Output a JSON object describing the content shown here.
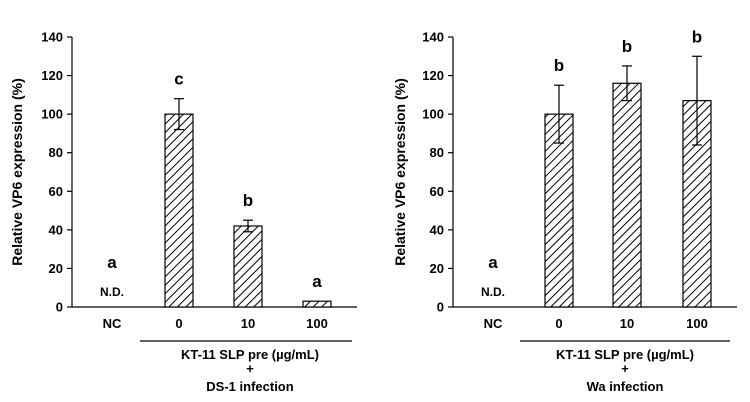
{
  "chart_data": [
    {
      "type": "bar",
      "ylabel": "Relative VP6 expression (%)",
      "ylim": [
        0,
        140
      ],
      "yticks": [
        0,
        20,
        40,
        60,
        80,
        100,
        120,
        140
      ],
      "grid": false,
      "bar_fill": "diagonal-hatch",
      "categories": [
        "NC",
        "0",
        "10",
        "100"
      ],
      "values": [
        0,
        100,
        42,
        3
      ],
      "errors": [
        null,
        8,
        3,
        null
      ],
      "group_labels": [
        "a",
        "c",
        "b",
        "a"
      ],
      "annotations": [
        "N.D.",
        "",
        "",
        ""
      ],
      "caption_lines": [
        "KT-11 SLP pre (µg/mL)",
        "+",
        "DS-1 infection"
      ]
    },
    {
      "type": "bar",
      "ylabel": "Relative VP6 expression (%)",
      "ylim": [
        0,
        140
      ],
      "yticks": [
        0,
        20,
        40,
        60,
        80,
        100,
        120,
        140
      ],
      "grid": false,
      "bar_fill": "diagonal-hatch",
      "categories": [
        "NC",
        "0",
        "10",
        "100"
      ],
      "values": [
        0,
        100,
        116,
        107
      ],
      "errors": [
        null,
        15,
        9,
        23
      ],
      "group_labels": [
        "a",
        "b",
        "b",
        "b"
      ],
      "annotations": [
        "N.D.",
        "",
        "",
        ""
      ],
      "caption_lines": [
        "KT-11 SLP pre (µg/mL)",
        "+",
        "Wa infection"
      ]
    }
  ]
}
